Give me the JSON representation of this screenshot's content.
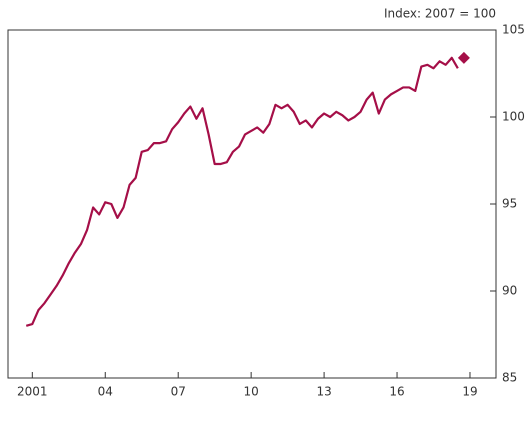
{
  "chart_data": {
    "type": "line",
    "y_axis_label": "Index: 2007 = 100",
    "xlim": [
      2000,
      2020.07
    ],
    "xticks": [
      2001,
      {
        "value": 2004,
        "label": "04"
      },
      {
        "value": 2007,
        "label": "07"
      },
      {
        "value": 2010,
        "label": "10"
      },
      {
        "value": 2013,
        "label": "13"
      },
      {
        "value": 2016,
        "label": "16"
      },
      {
        "value": 2019,
        "label": "19"
      }
    ],
    "ylim": [
      85,
      105
    ],
    "yticks": [
      85,
      90,
      95,
      100,
      105
    ],
    "y_axis_side": "right",
    "series": [
      {
        "color": "#a50f48",
        "x": [
          2000.75,
          2001,
          2001.25,
          2001.5,
          2001.75,
          2002,
          2002.25,
          2002.5,
          2002.75,
          2003,
          2003.25,
          2003.5,
          2003.75,
          2004,
          2004.25,
          2004.5,
          2004.75,
          2005,
          2005.25,
          2005.5,
          2005.75,
          2006,
          2006.25,
          2006.5,
          2006.75,
          2007,
          2007.25,
          2007.5,
          2007.75,
          2008,
          2008.25,
          2008.5,
          2008.75,
          2009,
          2009.25,
          2009.5,
          2009.75,
          2010,
          2010.25,
          2010.5,
          2010.75,
          2011,
          2011.25,
          2011.5,
          2011.75,
          2012,
          2012.25,
          2012.5,
          2012.75,
          2013,
          2013.25,
          2013.5,
          2013.75,
          2014,
          2014.25,
          2014.5,
          2014.75,
          2015,
          2015.25,
          2015.5,
          2015.75,
          2016,
          2016.25,
          2016.5,
          2016.75,
          2017,
          2017.25,
          2017.5,
          2017.75,
          2018,
          2018.25,
          2018.5
        ],
        "values": [
          88.0,
          88.1,
          88.9,
          89.3,
          89.8,
          90.3,
          90.9,
          91.6,
          92.2,
          92.7,
          93.5,
          94.8,
          94.4,
          95.1,
          95.0,
          94.2,
          94.8,
          96.1,
          96.5,
          98.0,
          98.1,
          98.5,
          98.5,
          98.6,
          99.3,
          99.7,
          100.2,
          100.6,
          99.9,
          100.5,
          99.0,
          97.3,
          97.3,
          97.4,
          98.0,
          98.3,
          99.0,
          99.2,
          99.4,
          99.1,
          99.6,
          100.7,
          100.5,
          100.7,
          100.3,
          99.6,
          99.8,
          99.4,
          99.9,
          100.2,
          100.0,
          100.3,
          100.1,
          99.8,
          100.0,
          100.3,
          101.0,
          101.4,
          100.2,
          101.0,
          101.3,
          101.5,
          101.7,
          101.7,
          101.5,
          102.9,
          103.0,
          102.8,
          103.2,
          103.0,
          103.4,
          102.8
        ]
      },
      {
        "color": "#a50f48",
        "marker": "diamond",
        "x": [
          2018.75
        ],
        "values": [
          103.4
        ]
      }
    ]
  }
}
